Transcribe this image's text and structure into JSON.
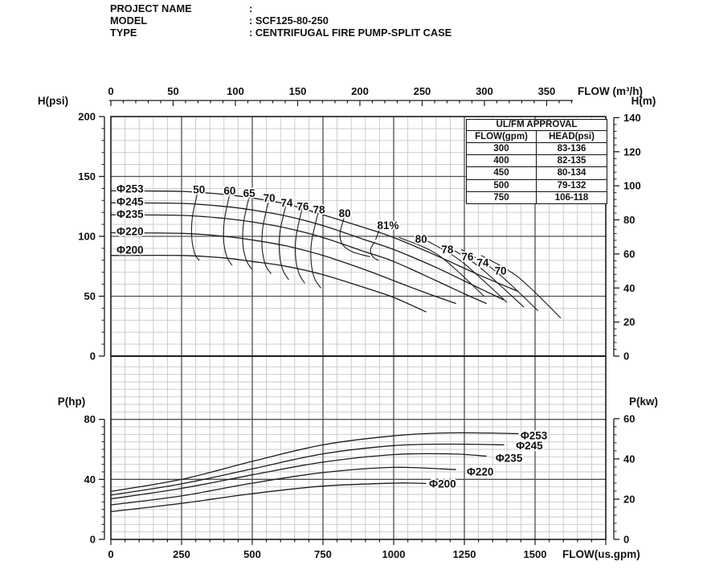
{
  "header": {
    "rows": [
      {
        "label": "PROJECT NAME",
        "value": ":"
      },
      {
        "label": "MODEL",
        "value": ": SCF125-80-250"
      },
      {
        "label": "TYPE",
        "value": ": CENTRIFUGAL FIRE PUMP-SPLIT CASE"
      }
    ]
  },
  "approval_table": {
    "title": "UL/FM APPROVAL",
    "columns": [
      "FLOW(gpm)",
      "HEAD(psi)"
    ],
    "rows": [
      [
        "300",
        "83-136"
      ],
      [
        "400",
        "82-135"
      ],
      [
        "450",
        "80-134"
      ],
      [
        "500",
        "79-132"
      ],
      [
        "750",
        "106-118"
      ]
    ]
  },
  "chart_data": [
    {
      "id": "head",
      "type": "line",
      "title": "Head-capacity curves",
      "top_axis": {
        "label": "FLOW (m³/h)",
        "ticks": [
          0,
          50,
          100,
          150,
          200,
          250,
          300,
          350
        ],
        "major_step": 50,
        "minor_step": 10,
        "max": 370
      },
      "left_axis": {
        "label": "H(psi)",
        "ticks": [
          200,
          150,
          100,
          50,
          0
        ],
        "min": 0,
        "max": 200,
        "major_step": 50,
        "minor_step": 10
      },
      "right_axis": {
        "label": "H(m)",
        "ticks": [
          140,
          120,
          100,
          80,
          60,
          40,
          20,
          0
        ],
        "min": 0,
        "max": 140,
        "major_step": 20,
        "minor_step": 4,
        "psi_per_unit": 1.4219
      },
      "grid": {
        "minor_x_gpm": 50,
        "major_x_gpm": 250,
        "minor_y_psi": 10,
        "major_y_psi": 50
      },
      "series": [
        {
          "name": "Φ253",
          "label_at": [
            20,
            139.5
          ],
          "points": [
            [
              0,
              138
            ],
            [
              250,
              137.5
            ],
            [
              400,
              135
            ],
            [
              500,
              132
            ],
            [
              620,
              127
            ],
            [
              750,
              118
            ],
            [
              900,
              107
            ],
            [
              1000,
              99
            ],
            [
              1150,
              84
            ],
            [
              1300,
              68
            ],
            [
              1440,
              54
            ]
          ]
        },
        {
          "name": "Φ245",
          "label_at": [
            20,
            129
          ],
          "points": [
            [
              0,
              128
            ],
            [
              250,
              127.5
            ],
            [
              400,
              125
            ],
            [
              500,
              122
            ],
            [
              620,
              117
            ],
            [
              750,
              109
            ],
            [
              900,
              97
            ],
            [
              1000,
              89
            ],
            [
              1150,
              74
            ],
            [
              1300,
              57
            ],
            [
              1389,
              47
            ]
          ]
        },
        {
          "name": "Φ235",
          "label_at": [
            20,
            118.5
          ],
          "points": [
            [
              0,
              118
            ],
            [
              250,
              117.5
            ],
            [
              400,
              115
            ],
            [
              500,
              112
            ],
            [
              620,
              107
            ],
            [
              750,
              99
            ],
            [
              900,
              87
            ],
            [
              1000,
              79
            ],
            [
              1150,
              63
            ],
            [
              1250,
              52
            ],
            [
              1327,
              44
            ]
          ]
        },
        {
          "name": "Φ220",
          "label_at": [
            20,
            104
          ],
          "points": [
            [
              0,
              103
            ],
            [
              250,
              102.5
            ],
            [
              400,
              100
            ],
            [
              500,
              97
            ],
            [
              620,
              92
            ],
            [
              750,
              84
            ],
            [
              900,
              72
            ],
            [
              1000,
              63
            ],
            [
              1100,
              54
            ],
            [
              1219,
              44
            ]
          ]
        },
        {
          "name": "Φ200",
          "label_at": [
            20,
            88.5
          ],
          "points": [
            [
              0,
              84
            ],
            [
              250,
              84
            ],
            [
              400,
              82
            ],
            [
              500,
              79
            ],
            [
              620,
              75
            ],
            [
              750,
              68
            ],
            [
              900,
              57
            ],
            [
              1000,
              49
            ],
            [
              1114,
              37
            ]
          ]
        }
      ],
      "efficiency": {
        "left_branches": [
          {
            "label": "50",
            "label_at": [
              312,
              139
            ],
            "points": [
              [
                305,
                135
              ],
              [
                288,
                116
              ],
              [
                286,
                99
              ],
              [
                296,
                86
              ],
              [
                312,
                80
              ]
            ]
          },
          {
            "label": "60",
            "label_at": [
              420,
              138
            ],
            "points": [
              [
                418,
                133
              ],
              [
                401,
                113
              ],
              [
                399,
                96
              ],
              [
                410,
                83
              ],
              [
                428,
                76
              ]
            ]
          },
          {
            "label": "65",
            "label_at": [
              489,
              136
            ],
            "points": [
              [
                487,
                131
              ],
              [
                469,
                111
              ],
              [
                467,
                93
              ],
              [
                479,
                80
              ],
              [
                497,
                73
              ]
            ]
          },
          {
            "label": "70",
            "label_at": [
              560,
              132
            ],
            "points": [
              [
                556,
                128
              ],
              [
                537,
                107
              ],
              [
                535,
                90
              ],
              [
                547,
                76
              ],
              [
                566,
                69
              ]
            ]
          },
          {
            "label": "74",
            "label_at": [
              622,
              128
            ],
            "points": [
              [
                618,
                125
              ],
              [
                598,
                104
              ],
              [
                596,
                86
              ],
              [
                608,
                72
              ],
              [
                628,
                64
              ]
            ]
          },
          {
            "label": "76",
            "label_at": [
              679,
              125
            ],
            "points": [
              [
                675,
                122
              ],
              [
                655,
                100
              ],
              [
                653,
                83
              ],
              [
                665,
                69
              ],
              [
                685,
                61
              ]
            ]
          },
          {
            "label": "78",
            "label_at": [
              736,
              122
            ],
            "points": [
              [
                732,
                119
              ],
              [
                710,
                96
              ],
              [
                708,
                79
              ],
              [
                720,
                65
              ],
              [
                742,
                57
              ]
            ]
          },
          {
            "label": "80",
            "label_at": [
              827,
              119
            ],
            "points": [
              [
                824,
                115
              ],
              [
                810,
                102
              ],
              [
                820,
                93
              ],
              [
                855,
                87
              ],
              [
                915,
                83
              ]
            ]
          }
        ],
        "right_branches": [
          {
            "label": "80",
            "label_at": [
              1097,
              97.5
            ],
            "points": [
              [
                1020,
                99
              ],
              [
                1160,
                84
              ],
              [
                1320,
                50
              ]
            ]
          },
          {
            "label": "78",
            "label_at": [
              1190,
              89
            ],
            "points": [
              [
                1120,
                96
              ],
              [
                1240,
                79
              ],
              [
                1400,
                45
              ]
            ]
          },
          {
            "label": "76",
            "label_at": [
              1261,
              83
            ],
            "points": [
              [
                1185,
                92
              ],
              [
                1300,
                75
              ],
              [
                1460,
                41
              ]
            ]
          },
          {
            "label": "74",
            "label_at": [
              1315,
              78
            ],
            "points": [
              [
                1240,
                89
              ],
              [
                1360,
                71
              ],
              [
                1510,
                38
              ]
            ]
          },
          {
            "label": "70",
            "label_at": [
              1378,
              71
            ],
            "points": [
              [
                1310,
                84
              ],
              [
                1440,
                66
              ],
              [
                1590,
                32
              ]
            ]
          }
        ],
        "peak": {
          "label": "81%",
          "label_at": [
            980,
            109
          ],
          "leader": [
            [
              950,
              106
            ],
            [
              936,
              97
            ]
          ],
          "hook": [
            [
              932,
              95
            ],
            [
              918,
              89
            ],
            [
              926,
              83
            ],
            [
              946,
              80
            ]
          ]
        }
      }
    },
    {
      "id": "power",
      "type": "line",
      "title": "Power curves",
      "bottom_axis": {
        "label": "FLOW(us.gpm)",
        "ticks": [
          0,
          250,
          500,
          750,
          1000,
          1250,
          1500
        ],
        "major_step": 250,
        "minor_step": 50,
        "min": 0,
        "max": 1750
      },
      "left_axis": {
        "label": "P(hp)",
        "ticks": [
          80,
          40,
          0
        ],
        "min": 0,
        "max": 80,
        "major_step": 40,
        "minor_step": 5
      },
      "right_axis": {
        "label": "P(kw)",
        "ticks": [
          60,
          40,
          20,
          0
        ],
        "min": 0,
        "max": 60,
        "major_step": 20,
        "minor_step": 4,
        "hp_per_unit": 1.341
      },
      "series": [
        {
          "name": "Φ253",
          "label_at": [
            1448,
            69
          ],
          "points": [
            [
              0,
              32
            ],
            [
              250,
              40
            ],
            [
              500,
              52
            ],
            [
              750,
              63
            ],
            [
              1000,
              69
            ],
            [
              1200,
              71
            ],
            [
              1440,
              70.5
            ]
          ]
        },
        {
          "name": "Φ245",
          "label_at": [
            1432,
            62.5
          ],
          "points": [
            [
              0,
              29.5
            ],
            [
              250,
              37
            ],
            [
              500,
              47
            ],
            [
              750,
              57
            ],
            [
              1000,
              62.5
            ],
            [
              1200,
              63.5
            ],
            [
              1389,
              63
            ]
          ]
        },
        {
          "name": "Φ235",
          "label_at": [
            1360,
            54
          ],
          "points": [
            [
              0,
              27
            ],
            [
              250,
              34
            ],
            [
              500,
              43
            ],
            [
              750,
              51.5
            ],
            [
              1000,
              56.5
            ],
            [
              1200,
              57
            ],
            [
              1327,
              55.5
            ]
          ]
        },
        {
          "name": "Φ220",
          "label_at": [
            1258,
            45
          ],
          "points": [
            [
              0,
              23
            ],
            [
              250,
              29
            ],
            [
              500,
              37.5
            ],
            [
              750,
              44.5
            ],
            [
              1000,
              48
            ],
            [
              1219,
              46.5
            ]
          ]
        },
        {
          "name": "Φ200",
          "label_at": [
            1125,
            37
          ],
          "points": [
            [
              0,
              18.5
            ],
            [
              250,
              24
            ],
            [
              500,
              30.5
            ],
            [
              750,
              35.5
            ],
            [
              1000,
              37.5
            ],
            [
              1114,
              37.3
            ]
          ]
        }
      ]
    }
  ]
}
